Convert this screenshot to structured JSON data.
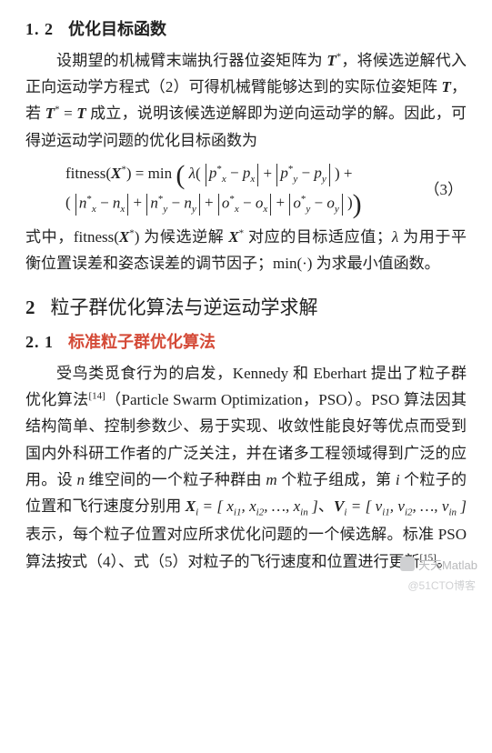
{
  "section12": {
    "num": "1. 2",
    "title": "优化目标函数",
    "para1_a": "设期望的机械臂末端执行器位姿矩阵为 ",
    "Tstar": "T*",
    "para1_b": "，将候选逆解代入正向运动学方程式（2）可得机械臂能够达到的实际位姿矩阵 ",
    "T": "T",
    "para1_c": "，若 ",
    "eq": " = ",
    "para1_d": " 成立，说明该候选逆解即为逆向运动学的解。因此，可得逆运动学问题的优化目标函数为",
    "fitness": "fitness(",
    "Xstar": "X*",
    "rp": ") = min",
    "lambda": "λ",
    "terms": {
      "px": "p",
      "nx": "n",
      "ox": "o",
      "x": "x",
      "y": "y"
    },
    "plus": " + ",
    "minus": " − ",
    "eqno": "（3）",
    "post_a": "式中，fitness(",
    "post_b": ") 为候选逆解 ",
    "post_c": " 对应的目标适应值；",
    "post_d": " 为用于平衡位置误差和姿态误差的调节因子；min(·) 为求最小值函数。"
  },
  "section2": {
    "num": "2",
    "title": "粒子群优化算法与逆运动学求解"
  },
  "section21": {
    "num": "2. 1",
    "title": "标准粒子群优化算法",
    "para_a": "受鸟类觅食行为的启发，Kennedy 和 Eberhart 提出了粒子群优化算法",
    "cite1": "[14]",
    "para_b": "（Particle Swarm Optimization，PSO）。PSO 算法因其结构简单、控制参数少、易于实现、收敛性能良好等优点而受到国内外科研工作者的广泛关注，并在诸多工程领域得到广泛的应用。设 ",
    "n": "n",
    "para_c": " 维空间的一个粒子种群由 ",
    "m": "m",
    "para_d": " 个粒子组成，第 ",
    "i": "i",
    "para_e": " 个粒子的位置和飞行速度分别用 ",
    "Xi": "X",
    "xi_list": " = [ x_{i1}, x_{i2}, …, x_{in} ]",
    "para_f": "、",
    "Vi": "V",
    "vi_list": " = [ v_{i1}, v_{i2}, …, v_{in} ]",
    "para_g": " 表示，每个粒子位置对应所求优化问题的一个候选解。标准 PSO 算法按式（4）、式（5）对粒子的飞行速度和位置进行更新",
    "cite2": "[15]",
    "para_h": "。"
  },
  "watermark": {
    "text1": "天天Matlab",
    "text2": "@51CTO博客"
  }
}
